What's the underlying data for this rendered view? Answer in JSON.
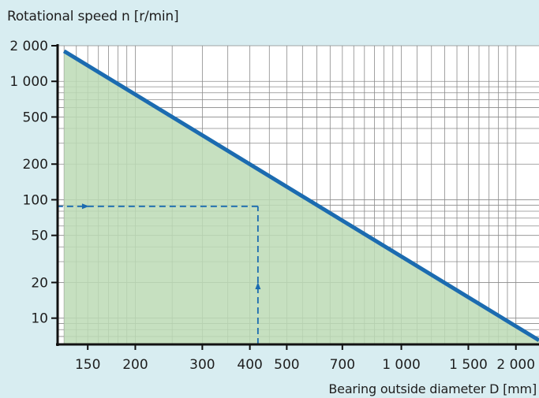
{
  "chart_data": {
    "type": "line",
    "title": "",
    "ylabel": "Rotational speed n [r/min]",
    "xlabel": "Bearing outside diameter D [mm]",
    "x_scale": "log",
    "y_scale": "log",
    "xlim": [
      125,
      2300
    ],
    "ylim": [
      6,
      2000
    ],
    "x_ticks": [
      150,
      200,
      300,
      400,
      500,
      700,
      1000,
      1500,
      2000
    ],
    "x_tick_labels": [
      "150",
      "200",
      "300",
      "400",
      "500",
      "700",
      "1 000",
      "1 500",
      "2 000"
    ],
    "y_ticks": [
      10,
      20,
      50,
      100,
      200,
      500,
      1000,
      2000
    ],
    "y_tick_labels": [
      "10",
      "20",
      "50",
      "100",
      "200",
      "500",
      "1 000",
      "2 000"
    ],
    "grid": true,
    "series": [
      {
        "x": [
          130,
          2300
        ],
        "y": [
          1800,
          6.5
        ],
        "color": "#1b6bb0",
        "fill_below": "#bcdbb5"
      }
    ],
    "annotation": {
      "x": 420,
      "y": 88,
      "style": "dashed",
      "color": "#1b6bb0",
      "arrows": [
        "up",
        "left"
      ]
    }
  }
}
